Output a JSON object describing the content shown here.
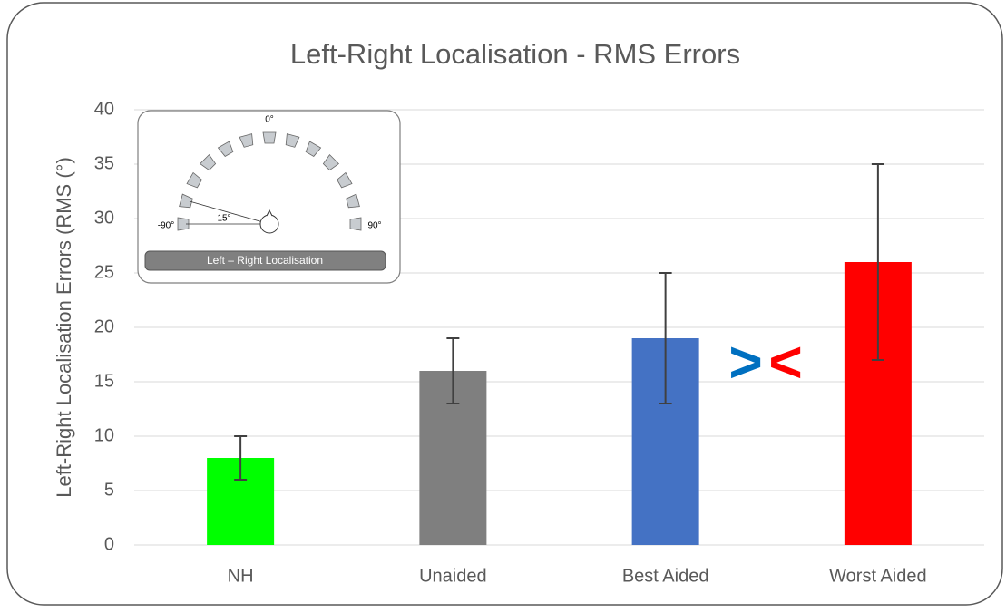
{
  "chart_data": {
    "type": "bar",
    "title": "Left-Right Localisation - RMS Errors",
    "y_label": "Left-Right Localisation Errors (RMS (°)",
    "categories": [
      "NH",
      "Unaided",
      "Best Aided",
      "Worst Aided"
    ],
    "values": [
      8,
      16,
      19,
      26
    ],
    "lower": [
      6,
      13,
      13,
      17
    ],
    "upper": [
      10,
      19,
      25,
      35
    ],
    "colors": [
      "#00ff00",
      "#7f7f7f",
      "#4472c4",
      "#ff0000"
    ],
    "ylim": [
      0,
      40
    ],
    "yticks": [
      0,
      5,
      10,
      15,
      20,
      25,
      30,
      35,
      40
    ],
    "grid": true,
    "annotations": [
      {
        "text": ">",
        "color": "#0070c0"
      },
      {
        "text": "<",
        "color": "#ff0000"
      }
    ],
    "inset": {
      "top": "0°",
      "left": "-90°",
      "right": "90°",
      "angle": "15°",
      "caption": "Left – Right Localisation"
    }
  }
}
